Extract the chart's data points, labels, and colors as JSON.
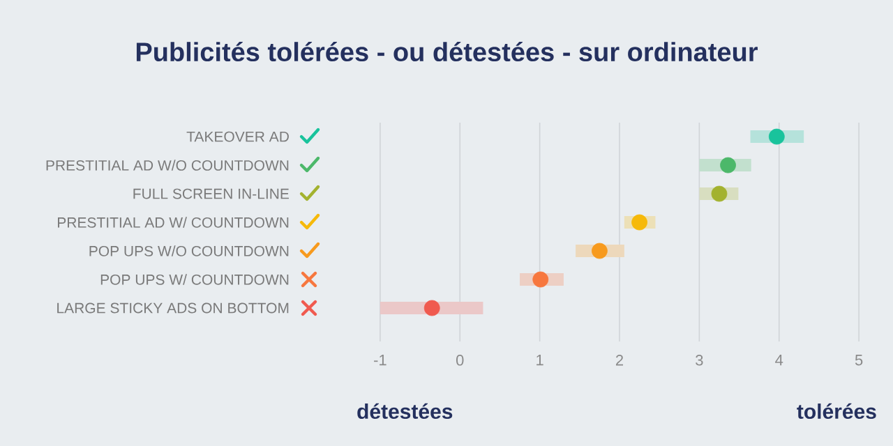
{
  "chart_data": {
    "type": "scatter",
    "orientation": "horizontal",
    "title": "Publicités tolérées - ou détestées - sur ordinateur",
    "categories": [
      "TAKEOVER AD",
      "PRESTITIAL AD W/O COUNTDOWN",
      "FULL SCREEN IN-LINE",
      "PRESTITIAL AD W/ COUNTDOWN",
      "POP UPS W/O COUNTDOWN",
      "POP UPS W/ COUNTDOWN",
      "LARGE STICKY ADS ON BOTTOM"
    ],
    "values": [
      3.97,
      3.36,
      3.25,
      2.25,
      1.75,
      1.01,
      -0.35
    ],
    "errors": [
      [
        3.64,
        4.31
      ],
      [
        3.0,
        3.65
      ],
      [
        3.0,
        3.49
      ],
      [
        2.06,
        2.45
      ],
      [
        1.45,
        2.06
      ],
      [
        0.75,
        1.3
      ],
      [
        -1.0,
        0.29
      ]
    ],
    "colors": [
      "#19c39c",
      "#4cb86a",
      "#a3b22f",
      "#f6b90a",
      "#f79a1e",
      "#f7773e",
      "#f05a4f"
    ],
    "xlim": [
      -1,
      5
    ],
    "xticks": [
      -1,
      0,
      1,
      2,
      3,
      4,
      5
    ],
    "grid": "x",
    "annotations": [
      "détestées",
      "tolérées"
    ]
  }
}
